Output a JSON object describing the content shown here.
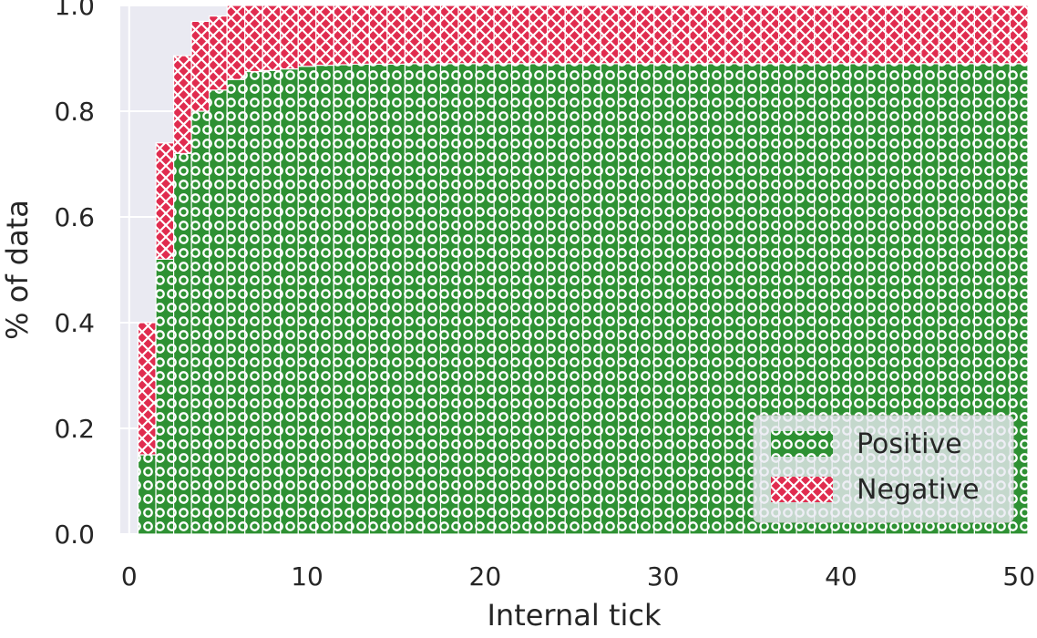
{
  "chart_data": {
    "type": "bar",
    "stacked": true,
    "xlabel": "Internal tick",
    "ylabel": "% of data",
    "xlim": [
      -0.5,
      50.5
    ],
    "ylim": [
      0.0,
      1.0
    ],
    "xticks": [
      0,
      10,
      20,
      30,
      40,
      50
    ],
    "yticks": [
      0.0,
      0.2,
      0.4,
      0.6,
      0.8,
      1.0
    ],
    "xtick_labels": [
      "0",
      "10",
      "20",
      "30",
      "40",
      "50"
    ],
    "ytick_labels": [
      "0.0",
      "0.2",
      "0.4",
      "0.6",
      "0.8",
      "1.0"
    ],
    "grid": true,
    "legend_position": "bottom-right",
    "x": [
      1,
      2,
      3,
      4,
      5,
      6,
      7,
      8,
      9,
      10,
      11,
      12,
      13,
      14,
      15,
      16,
      17,
      18,
      19,
      20,
      21,
      22,
      23,
      24,
      25,
      26,
      27,
      28,
      29,
      30,
      31,
      32,
      33,
      34,
      35,
      36,
      37,
      38,
      39,
      40,
      41,
      42,
      43,
      44,
      45,
      46,
      47,
      48,
      49,
      50
    ],
    "series": [
      {
        "name": "Positive",
        "color": "#2e9133",
        "hatch": "o",
        "values": [
          0.15,
          0.52,
          0.72,
          0.8,
          0.84,
          0.86,
          0.875,
          0.877,
          0.88,
          0.885,
          0.887,
          0.888,
          0.889,
          0.889,
          0.889,
          0.89,
          0.89,
          0.89,
          0.89,
          0.89,
          0.89,
          0.89,
          0.89,
          0.89,
          0.89,
          0.89,
          0.89,
          0.89,
          0.89,
          0.89,
          0.89,
          0.89,
          0.89,
          0.89,
          0.89,
          0.89,
          0.89,
          0.89,
          0.89,
          0.89,
          0.89,
          0.89,
          0.89,
          0.89,
          0.89,
          0.89,
          0.89,
          0.89,
          0.89,
          0.89
        ]
      },
      {
        "name": "Negative",
        "color": "#e02c4f",
        "hatch": "x",
        "values": [
          0.25,
          0.22,
          0.185,
          0.17,
          0.14,
          0.14,
          0.125,
          0.123,
          0.12,
          0.115,
          0.113,
          0.112,
          0.111,
          0.111,
          0.111,
          0.11,
          0.11,
          0.11,
          0.11,
          0.11,
          0.11,
          0.11,
          0.11,
          0.11,
          0.11,
          0.11,
          0.11,
          0.11,
          0.11,
          0.11,
          0.11,
          0.11,
          0.11,
          0.11,
          0.11,
          0.11,
          0.11,
          0.11,
          0.11,
          0.11,
          0.11,
          0.11,
          0.11,
          0.11,
          0.11,
          0.11,
          0.11,
          0.11,
          0.11,
          0.11
        ]
      }
    ]
  }
}
